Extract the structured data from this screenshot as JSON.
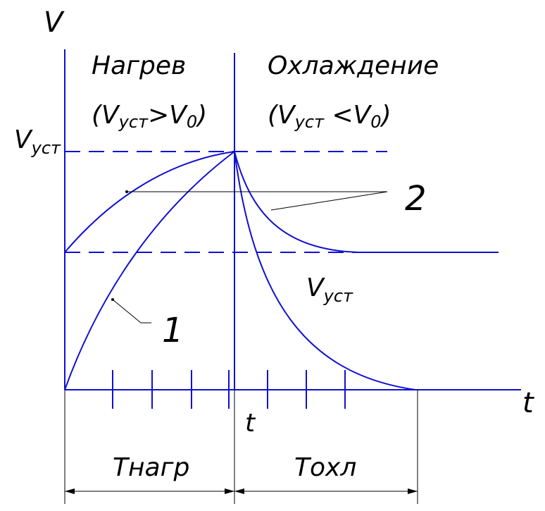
{
  "axis_v": "V",
  "axis_t": "t",
  "time_mark": "t",
  "heating": {
    "title": "Нагрев",
    "condition": [
      "(V",
      "уст",
      ">V",
      "0",
      ")"
    ]
  },
  "cooling": {
    "title": "Охлаждение",
    "condition": [
      "(V",
      "уст",
      " <V",
      "0",
      ")"
    ]
  },
  "steady_label": [
    "V",
    "уст"
  ],
  "curve_label": [
    "V",
    "уст"
  ],
  "callout_1": "1",
  "callout_2": "2",
  "heating_time": "Тнагр",
  "cooling_time": "Тохл"
}
